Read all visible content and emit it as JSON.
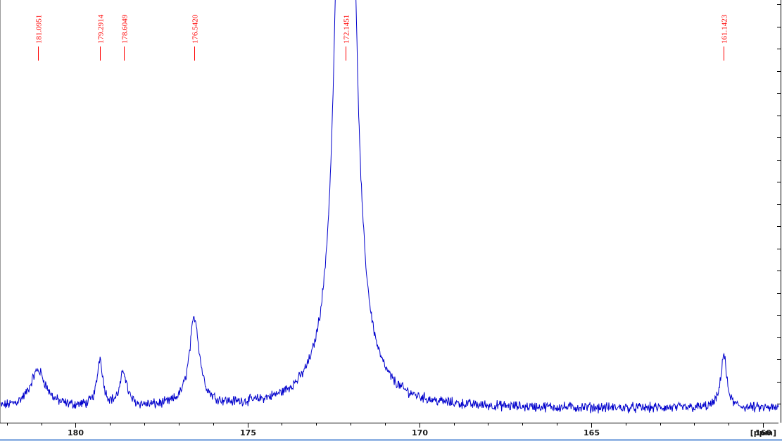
{
  "colors": {
    "spectrum": "#0000cc",
    "peak_label": "#ff0000",
    "axis": "#000000",
    "background": "#ffffff",
    "bottom_border": "#5b8fd6"
  },
  "chart_data": {
    "type": "line",
    "title": "",
    "xlabel": "[ppm]",
    "ylabel": "",
    "xlim": [
      182.2,
      159.55
    ],
    "ylim": [
      0,
      1
    ],
    "x_reversed": true,
    "x_ticks": [
      {
        "value": 180,
        "label": "180"
      },
      {
        "value": 175,
        "label": "175"
      },
      {
        "value": 170,
        "label": "170"
      },
      {
        "value": 165,
        "label": "165"
      },
      {
        "value": 160,
        "label": "160"
      }
    ],
    "x_unit": "[ppm]",
    "grid": false,
    "baseline": 0.04,
    "noise": 0.012,
    "peaks": [
      {
        "ppm": 181.0951,
        "label": "181.0951",
        "height": 0.11,
        "width": 0.28
      },
      {
        "ppm": 179.2914,
        "label": "179.2914",
        "height": 0.14,
        "width": 0.1
      },
      {
        "ppm": 178.6049,
        "label": "178.6049",
        "height": 0.1,
        "width": 0.12
      },
      {
        "ppm": 176.542,
        "label": "176.5420",
        "height": 0.26,
        "width": 0.18
      },
      {
        "ppm": 172.1451,
        "label": "172.1451",
        "height": 3.5,
        "width": 0.22
      },
      {
        "ppm": 161.1423,
        "label": "161.1423",
        "height": 0.16,
        "width": 0.1
      }
    ],
    "series": [
      {
        "values_note": ""
      }
    ]
  }
}
